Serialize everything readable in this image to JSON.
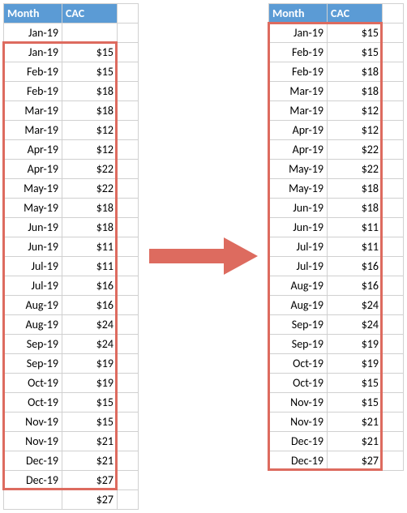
{
  "header_bg": "#5b9bd5",
  "header_fg": "#ffffff",
  "grid_color": "#d0d0d0",
  "redbox_color": "#dd6b5f",
  "arrow_color": "#dd6b5f",
  "headers": {
    "month": "Month",
    "cac": "CAC"
  },
  "col_widths": {
    "month": 72,
    "cac": 68,
    "gap": 26
  },
  "left": {
    "rows": [
      {
        "month": "Jan-19",
        "cac": ""
      },
      {
        "month": "Jan-19",
        "cac": "$15"
      },
      {
        "month": "Feb-19",
        "cac": "$15"
      },
      {
        "month": "Feb-19",
        "cac": "$18"
      },
      {
        "month": "Mar-19",
        "cac": "$18"
      },
      {
        "month": "Mar-19",
        "cac": "$12"
      },
      {
        "month": "Apr-19",
        "cac": "$12"
      },
      {
        "month": "Apr-19",
        "cac": "$22"
      },
      {
        "month": "May-19",
        "cac": "$22"
      },
      {
        "month": "May-19",
        "cac": "$18"
      },
      {
        "month": "Jun-19",
        "cac": "$18"
      },
      {
        "month": "Jun-19",
        "cac": "$11"
      },
      {
        "month": "Jul-19",
        "cac": "$11"
      },
      {
        "month": "Jul-19",
        "cac": "$16"
      },
      {
        "month": "Aug-19",
        "cac": "$16"
      },
      {
        "month": "Aug-19",
        "cac": "$24"
      },
      {
        "month": "Sep-19",
        "cac": "$24"
      },
      {
        "month": "Sep-19",
        "cac": "$19"
      },
      {
        "month": "Oct-19",
        "cac": "$19"
      },
      {
        "month": "Oct-19",
        "cac": "$15"
      },
      {
        "month": "Nov-19",
        "cac": "$15"
      },
      {
        "month": "Nov-19",
        "cac": "$21"
      },
      {
        "month": "Dec-19",
        "cac": "$21"
      },
      {
        "month": "Dec-19",
        "cac": "$27"
      },
      {
        "month": "",
        "cac": "$27"
      }
    ],
    "highlight": {
      "from_row": 2,
      "to_row": 24,
      "cols": [
        "month",
        "cac"
      ]
    }
  },
  "right": {
    "rows": [
      {
        "month": "Jan-19",
        "cac": "$15"
      },
      {
        "month": "Feb-19",
        "cac": "$15"
      },
      {
        "month": "Feb-19",
        "cac": "$18"
      },
      {
        "month": "Mar-19",
        "cac": "$18"
      },
      {
        "month": "Mar-19",
        "cac": "$12"
      },
      {
        "month": "Apr-19",
        "cac": "$12"
      },
      {
        "month": "Apr-19",
        "cac": "$22"
      },
      {
        "month": "May-19",
        "cac": "$22"
      },
      {
        "month": "May-19",
        "cac": "$18"
      },
      {
        "month": "Jun-19",
        "cac": "$18"
      },
      {
        "month": "Jun-19",
        "cac": "$11"
      },
      {
        "month": "Jul-19",
        "cac": "$11"
      },
      {
        "month": "Jul-19",
        "cac": "$16"
      },
      {
        "month": "Aug-19",
        "cac": "$16"
      },
      {
        "month": "Aug-19",
        "cac": "$24"
      },
      {
        "month": "Sep-19",
        "cac": "$24"
      },
      {
        "month": "Sep-19",
        "cac": "$19"
      },
      {
        "month": "Oct-19",
        "cac": "$19"
      },
      {
        "month": "Oct-19",
        "cac": "$15"
      },
      {
        "month": "Nov-19",
        "cac": "$15"
      },
      {
        "month": "Nov-19",
        "cac": "$21"
      },
      {
        "month": "Dec-19",
        "cac": "$21"
      },
      {
        "month": "Dec-19",
        "cac": "$27"
      }
    ],
    "highlight": {
      "from_row": 1,
      "to_row": 23,
      "cols": [
        "month",
        "cac"
      ]
    }
  }
}
